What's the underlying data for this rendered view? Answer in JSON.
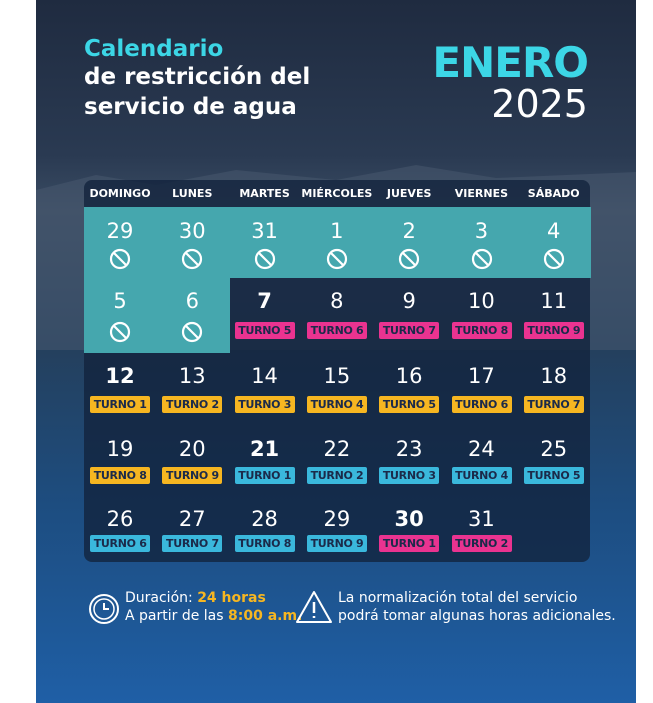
{
  "header": {
    "title_line1": "Calendario",
    "title_line2": "de restricción del",
    "title_line3": "servicio de agua",
    "month": "ENERO",
    "year": "2025"
  },
  "calendar": {
    "weekdays": [
      "DOMINGO",
      "LUNES",
      "MARTES",
      "MIÉRCOLES",
      "JUEVES",
      "VIERNES",
      "SÁBADO"
    ],
    "weeks": [
      [
        {
          "day": 29,
          "restricted": true
        },
        {
          "day": 30,
          "restricted": true
        },
        {
          "day": 31,
          "restricted": true
        },
        {
          "day": 1,
          "restricted": true
        },
        {
          "day": 2,
          "restricted": true
        },
        {
          "day": 3,
          "restricted": true
        },
        {
          "day": 4,
          "restricted": true
        }
      ],
      [
        {
          "day": 5,
          "restricted": true
        },
        {
          "day": 6,
          "restricted": true
        },
        {
          "day": 7,
          "turno": "TURNO 5",
          "color": "#ea3390",
          "bold": true
        },
        {
          "day": 8,
          "turno": "TURNO 6",
          "color": "#ea3390"
        },
        {
          "day": 9,
          "turno": "TURNO 7",
          "color": "#ea3390"
        },
        {
          "day": 10,
          "turno": "TURNO 8",
          "color": "#ea3390"
        },
        {
          "day": 11,
          "turno": "TURNO 9",
          "color": "#ea3390"
        }
      ],
      [
        {
          "day": 12,
          "turno": "TURNO 1",
          "color": "#f6b621",
          "bold": true
        },
        {
          "day": 13,
          "turno": "TURNO 2",
          "color": "#f6b621"
        },
        {
          "day": 14,
          "turno": "TURNO 3",
          "color": "#f6b621"
        },
        {
          "day": 15,
          "turno": "TURNO 4",
          "color": "#f6b621"
        },
        {
          "day": 16,
          "turno": "TURNO 5",
          "color": "#f6b621"
        },
        {
          "day": 17,
          "turno": "TURNO 6",
          "color": "#f6b621"
        },
        {
          "day": 18,
          "turno": "TURNO 7",
          "color": "#f6b621"
        }
      ],
      [
        {
          "day": 19,
          "turno": "TURNO 8",
          "color": "#f6b621"
        },
        {
          "day": 20,
          "turno": "TURNO 9",
          "color": "#f6b621"
        },
        {
          "day": 21,
          "turno": "TURNO 1",
          "color": "#3ab8dc",
          "bold": true
        },
        {
          "day": 22,
          "turno": "TURNO 2",
          "color": "#3ab8dc"
        },
        {
          "day": 23,
          "turno": "TURNO 3",
          "color": "#3ab8dc"
        },
        {
          "day": 24,
          "turno": "TURNO 4",
          "color": "#3ab8dc"
        },
        {
          "day": 25,
          "turno": "TURNO 5",
          "color": "#3ab8dc"
        }
      ],
      [
        {
          "day": 26,
          "turno": "TURNO 6",
          "color": "#3ab8dc"
        },
        {
          "day": 27,
          "turno": "TURNO 7",
          "color": "#3ab8dc"
        },
        {
          "day": 28,
          "turno": "TURNO 8",
          "color": "#3ab8dc"
        },
        {
          "day": 29,
          "turno": "TURNO 9",
          "color": "#3ab8dc"
        },
        {
          "day": 30,
          "turno": "TURNO 1",
          "color": "#ea3390",
          "bold": true
        },
        {
          "day": 31,
          "turno": "TURNO 2",
          "color": "#ea3390"
        }
      ]
    ]
  },
  "footer": {
    "duration_label": "Duración:",
    "duration_value": "24 horas",
    "start_label": "A partir de las",
    "start_value": "8:00 a.m.",
    "notice_line1": "La normalización total del servicio",
    "notice_line2": "podrá tomar algunas horas adicionales."
  }
}
